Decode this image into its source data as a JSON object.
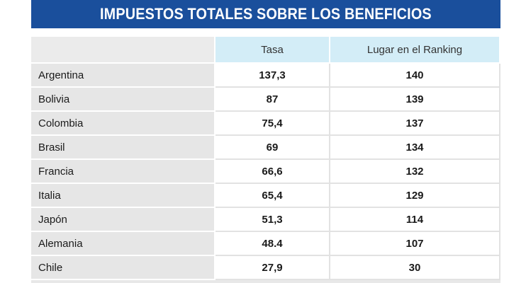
{
  "title": "IMPUESTOS TOTALES SOBRE LOS BENEFICIOS",
  "colors": {
    "title_background": "#1a4f9c",
    "header_background": "#d3edf7",
    "row_label_background": "#e6e6e6"
  },
  "chart_data": {
    "type": "table",
    "title": "IMPUESTOS TOTALES SOBRE LOS BENEFICIOS",
    "columns": [
      "",
      "Tasa",
      "Lugar en el Ranking"
    ],
    "rows": [
      {
        "country": "Argentina",
        "tasa": "137,3",
        "ranking": "140"
      },
      {
        "country": "Bolivia",
        "tasa": "87",
        "ranking": "139"
      },
      {
        "country": "Colombia",
        "tasa": "75,4",
        "ranking": "137"
      },
      {
        "country": "Brasil",
        "tasa": "69",
        "ranking": "134"
      },
      {
        "country": "Francia",
        "tasa": "66,6",
        "ranking": "132"
      },
      {
        "country": "Italia",
        "tasa": "65,4",
        "ranking": "129"
      },
      {
        "country": "Japón",
        "tasa": "51,3",
        "ranking": "114"
      },
      {
        "country": "Alemania",
        "tasa": "48.4",
        "ranking": "107"
      },
      {
        "country": "Chile",
        "tasa": "27,9",
        "ranking": "30"
      }
    ]
  }
}
